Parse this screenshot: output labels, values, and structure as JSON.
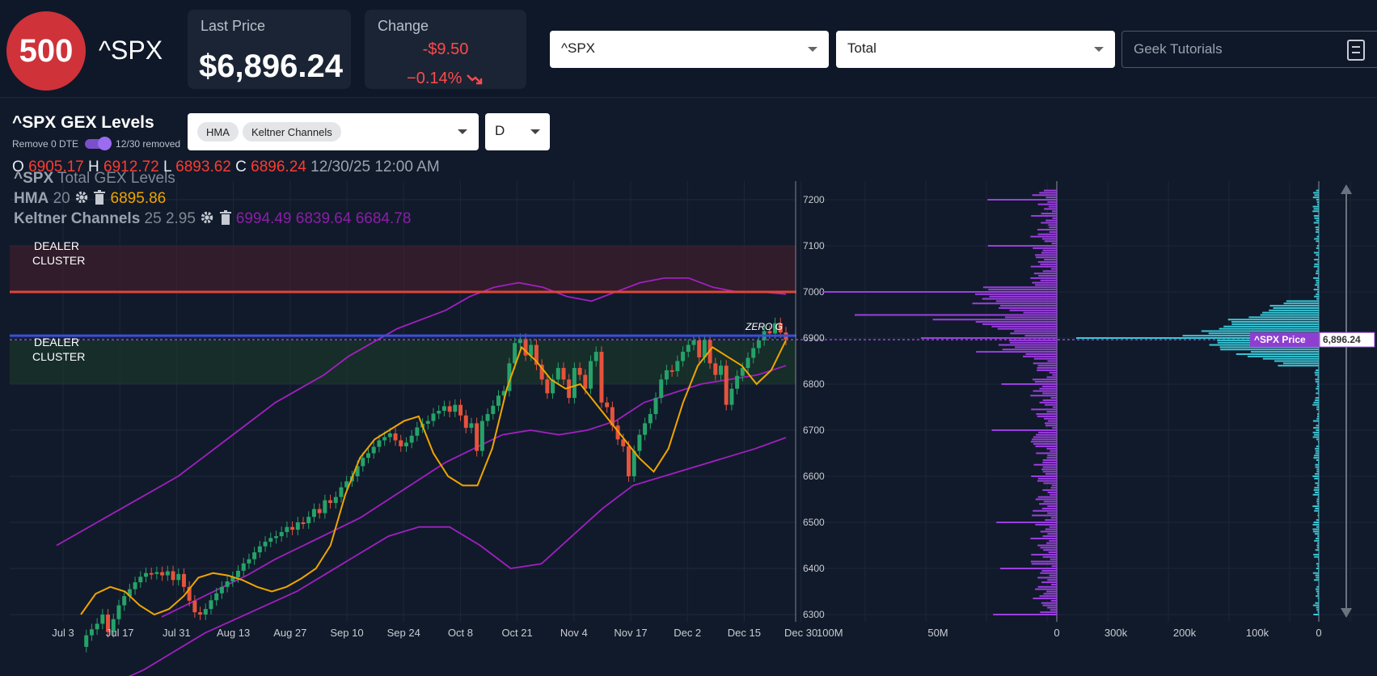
{
  "header": {
    "logo_text": "500",
    "ticker": "^SPX",
    "last_price_label": "Last Price",
    "last_price": "$6,896.24",
    "change_label": "Change",
    "change_abs": "-$9.50",
    "change_pct": "−0.14%",
    "symbol_select": "^SPX",
    "type_select": "Total",
    "search_placeholder": "Geek Tutorials"
  },
  "panel": {
    "title": "^SPX GEX Levels",
    "toggle_label": "Remove 0 DTE",
    "toggle_status": "12/30 removed",
    "indicators": [
      "HMA",
      "Keltner Channels"
    ],
    "interval": "D",
    "ohlc": {
      "o_label": "O",
      "o": "6905.17",
      "h_label": "H",
      "h": "6912.72",
      "l_label": "L",
      "l": "6893.62",
      "c_label": "C",
      "c": "6896.24",
      "date": "12/30/25 12:00 AM"
    }
  },
  "legend": {
    "title_sym": "^SPX",
    "title_rest": " Total GEX Levels",
    "hma_name": "HMA",
    "hma_param": "20",
    "hma_value": "6895.86",
    "kc_name": "Keltner Channels",
    "kc_params": "25 2.95",
    "kc_values": "6994.49 6839.64 6684.78"
  },
  "annotations": {
    "dealer_cluster_top": "DEALER CLUSTER",
    "dealer_cluster_bottom": "DEALER CLUSTER",
    "zero_gamma": "ZERO G",
    "price_tag_label": "^SPX Price",
    "price_tag_value": "6,896.24"
  },
  "colors": {
    "up": "#26a269",
    "down": "#e5533d",
    "hma": "#f0a500",
    "keltner": "#a020c0",
    "gex": "#9b3fe0",
    "oi": "#3ac8d8",
    "resistance": "#e0453a",
    "zero_gamma": "#3a4fd8"
  },
  "chart_data": {
    "type": "candlestick",
    "x_ticks": [
      "Jul 3",
      "Jul 17",
      "Jul 31",
      "Aug 13",
      "Aug 27",
      "Sep 10",
      "Sep 24",
      "Oct 8",
      "Oct 21",
      "Nov 4",
      "Nov 17",
      "Dec 2",
      "Dec 15",
      "Dec 30"
    ],
    "y_ticks": [
      7200,
      7100,
      7000,
      6900,
      6800,
      6700,
      6600,
      6500,
      6400,
      6300
    ],
    "ylim": [
      6290,
      7230
    ],
    "levels": {
      "resistance": 7000,
      "zero_gamma": 6905,
      "upper_cluster": [
        7000,
        7100
      ],
      "lower_cluster": [
        6800,
        6895
      ],
      "price": 6896.24
    },
    "close": [
      6230,
      6255,
      6268,
      6280,
      6300,
      6262,
      6290,
      6320,
      6340,
      6355,
      6370,
      6382,
      6390,
      6388,
      6392,
      6385,
      6394,
      6375,
      6388,
      6360,
      6330,
      6305,
      6300,
      6312,
      6331,
      6346,
      6360,
      6372,
      6381,
      6395,
      6411,
      6420,
      6435,
      6448,
      6458,
      6466,
      6470,
      6479,
      6490,
      6484,
      6500,
      6498,
      6512,
      6529,
      6520,
      6548,
      6542,
      6555,
      6576,
      6589,
      6600,
      6622,
      6640,
      6650,
      6664,
      6678,
      6685,
      6693,
      6678,
      6665,
      6673,
      6688,
      6706,
      6714,
      6720,
      6736,
      6742,
      6752,
      6740,
      6755,
      6732,
      6705,
      6715,
      6655,
      6720,
      6735,
      6753,
      6775,
      6785,
      6845,
      6889,
      6898,
      6862,
      6885,
      6842,
      6810,
      6780,
      6810,
      6835,
      6810,
      6770,
      6835,
      6820,
      6790,
      6850,
      6870,
      6760,
      6750,
      6710,
      6680,
      6665,
      6600,
      6655,
      6690,
      6715,
      6735,
      6770,
      6810,
      6830,
      6828,
      6850,
      6870,
      6885,
      6895,
      6858,
      6896,
      6845,
      6820,
      6840,
      6755,
      6790,
      6818,
      6835,
      6857,
      6878,
      6895,
      6915,
      6910,
      6932,
      6912,
      6896
    ],
    "hma": [
      6300,
      6345,
      6360,
      6350,
      6320,
      6300,
      6312,
      6340,
      6380,
      6390,
      6385,
      6375,
      6360,
      6350,
      6360,
      6378,
      6400,
      6450,
      6560,
      6640,
      6680,
      6700,
      6720,
      6730,
      6650,
      6600,
      6580,
      6580,
      6660,
      6790,
      6880,
      6850,
      6810,
      6790,
      6800,
      6760,
      6720,
      6680,
      6640,
      6610,
      6660,
      6760,
      6840,
      6880,
      6860,
      6840,
      6800,
      6830,
      6895
    ],
    "keltner_upper": [
      6450,
      6480,
      6510,
      6540,
      6570,
      6600,
      6640,
      6680,
      6720,
      6760,
      6790,
      6820,
      6860,
      6890,
      6920,
      6940,
      6960,
      6990,
      7010,
      7020,
      7010,
      6990,
      6980,
      7000,
      7020,
      7030,
      7030,
      7010,
      7000,
      7000,
      6995
    ],
    "keltner_mid": [
      6295,
      6325,
      6355,
      6385,
      6420,
      6450,
      6480,
      6510,
      6550,
      6590,
      6630,
      6660,
      6690,
      6700,
      6690,
      6700,
      6720,
      6760,
      6780,
      6800,
      6810,
      6820,
      6840
    ],
    "keltner_lower": [
      6150,
      6180,
      6220,
      6260,
      6290,
      6320,
      6350,
      6390,
      6430,
      6470,
      6490,
      6490,
      6450,
      6400,
      6410,
      6470,
      6530,
      6580,
      6600,
      6620,
      6640,
      6660,
      6684
    ],
    "gex_profile_max_label": "100M",
    "gex_axis_ticks": [
      "100M",
      "50M",
      "0"
    ],
    "oi_axis_ticks": [
      "300k",
      "200k",
      "100k",
      "0"
    ]
  }
}
